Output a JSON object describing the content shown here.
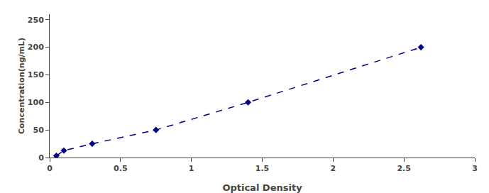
{
  "chart_data": {
    "type": "line",
    "x": [
      0.047,
      0.1,
      0.3,
      0.75,
      1.4,
      2.62
    ],
    "values": [
      3.125,
      12.5,
      25,
      50,
      100,
      200
    ],
    "color": "#00008B",
    "marker": "diamond",
    "line_style": "dashed",
    "xlabel": "Optical Density",
    "ylabel": "Concentration(ng/mL)",
    "xlim": [
      0,
      3
    ],
    "ylim": [
      0,
      260
    ],
    "xticks": [
      0,
      0.5,
      1,
      1.5,
      2,
      2.5,
      3
    ],
    "yticks": [
      0,
      50,
      100,
      150,
      200,
      250
    ],
    "grid": false
  }
}
